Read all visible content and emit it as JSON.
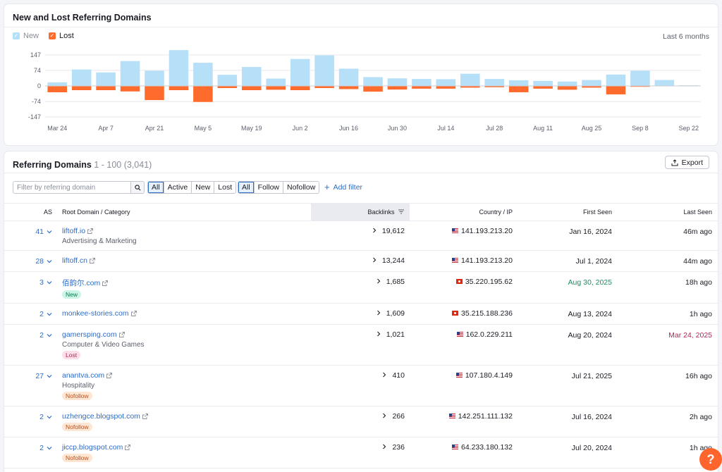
{
  "chart_card": {
    "title": "New and Lost Referring Domains",
    "legend": [
      {
        "label": "New",
        "color": "#b6e0f8",
        "checked": true
      },
      {
        "label": "Lost",
        "color": "#ff6b2d",
        "checked": true
      }
    ],
    "range_label": "Last 6 months"
  },
  "chart_data": {
    "type": "bar",
    "title": "New and Lost Referring Domains",
    "yticks": [
      "147",
      "74",
      "0",
      "-74",
      "-147"
    ],
    "ylim": [
      -147,
      147
    ],
    "grid": true,
    "legend_position": "top-left",
    "xtick_labels": [
      "Mar 24",
      "Apr 7",
      "Apr 21",
      "May 5",
      "May 19",
      "Jun 2",
      "Jun 16",
      "Jun 30",
      "Jul 14",
      "Jul 28",
      "Aug 11",
      "Aug 25",
      "Sep 8",
      "Sep 22"
    ],
    "series": [
      {
        "name": "New",
        "color": "#b6e0f8",
        "values": [
          17,
          78,
          64,
          118,
          72,
          170,
          110,
          53,
          90,
          35,
          128,
          145,
          82,
          42,
          36,
          33,
          32,
          58,
          33,
          27,
          24,
          21,
          28,
          54,
          72,
          28,
          3
        ]
      },
      {
        "name": "Lost",
        "color": "#ff6b2d",
        "values": [
          -30,
          -20,
          -20,
          -26,
          -67,
          -20,
          -76,
          -10,
          -20,
          -18,
          -20,
          -10,
          -15,
          -27,
          -17,
          -13,
          -13,
          -8,
          -6,
          -30,
          -13,
          -18,
          -8,
          -40,
          -4,
          0,
          0
        ]
      }
    ]
  },
  "table_card": {
    "title": "Referring Domains",
    "count_label": "1 - 100 (3,041)",
    "export_label": "Export",
    "search": {
      "placeholder": "Filter by referring domain"
    },
    "status_filters": [
      {
        "label": "All",
        "active": true
      },
      {
        "label": "Active",
        "active": false
      },
      {
        "label": "New",
        "active": false
      },
      {
        "label": "Lost",
        "active": false
      }
    ],
    "follow_filters": [
      {
        "label": "All",
        "active": true
      },
      {
        "label": "Follow",
        "active": false
      },
      {
        "label": "Nofollow",
        "active": false
      }
    ],
    "add_filter_label": "Add filter",
    "columns": {
      "as": "AS",
      "domain": "Root Domain / Category",
      "backlinks": "Backlinks",
      "country": "Country / IP",
      "first_seen": "First Seen",
      "last_seen": "Last Seen"
    },
    "rows": [
      {
        "as": "41",
        "domain": "liftoff.io",
        "category": "Advertising & Marketing",
        "badge": "",
        "badge_type": "",
        "backlinks": "19,612",
        "flag": "us",
        "ip": "141.193.213.20",
        "first_seen": "Jan 16, 2024",
        "first_seen_color": "",
        "last_seen": "46m ago",
        "last_seen_color": ""
      },
      {
        "as": "28",
        "domain": "liftoff.cn",
        "category": "",
        "badge": "",
        "badge_type": "",
        "backlinks": "13,244",
        "flag": "us",
        "ip": "141.193.213.20",
        "first_seen": "Jul 1, 2024",
        "first_seen_color": "",
        "last_seen": "44m ago",
        "last_seen_color": ""
      },
      {
        "as": "3",
        "domain": "佰韵尔.com",
        "category": "",
        "badge": "New",
        "badge_type": "new",
        "backlinks": "1,685",
        "flag": "hk",
        "ip": "35.220.195.62",
        "first_seen": "Aug 30, 2025",
        "first_seen_color": "green",
        "last_seen": "18h ago",
        "last_seen_color": ""
      },
      {
        "as": "2",
        "domain": "monkee-stories.com",
        "category": "",
        "badge": "",
        "badge_type": "",
        "backlinks": "1,609",
        "flag": "hk",
        "ip": "35.215.188.236",
        "first_seen": "Aug 13, 2024",
        "first_seen_color": "",
        "last_seen": "1h ago",
        "last_seen_color": ""
      },
      {
        "as": "2",
        "domain": "gamersping.com",
        "category": "Computer & Video Games",
        "badge": "Lost",
        "badge_type": "lost",
        "backlinks": "1,021",
        "flag": "us",
        "ip": "162.0.229.211",
        "first_seen": "Aug 20, 2024",
        "first_seen_color": "",
        "last_seen": "Mar 24, 2025",
        "last_seen_color": "red"
      },
      {
        "as": "27",
        "domain": "anantva.com",
        "category": "Hospitality",
        "badge": "Nofollow",
        "badge_type": "nofollow",
        "backlinks": "410",
        "flag": "us",
        "ip": "107.180.4.149",
        "first_seen": "Jul 21, 2025",
        "first_seen_color": "",
        "last_seen": "16h ago",
        "last_seen_color": ""
      },
      {
        "as": "2",
        "domain": "uzhengce.blogspot.com",
        "category": "",
        "badge": "Nofollow",
        "badge_type": "nofollow",
        "backlinks": "266",
        "flag": "us",
        "ip": "142.251.111.132",
        "first_seen": "Jul 16, 2024",
        "first_seen_color": "",
        "last_seen": "2h ago",
        "last_seen_color": ""
      },
      {
        "as": "2",
        "domain": "jiccp.blogspot.com",
        "category": "",
        "badge": "Nofollow",
        "badge_type": "nofollow",
        "backlinks": "236",
        "flag": "us",
        "ip": "64.233.180.132",
        "first_seen": "Jul 20, 2024",
        "first_seen_color": "",
        "last_seen": "1h ago",
        "last_seen_color": ""
      }
    ]
  },
  "help": {
    "label": "?"
  }
}
